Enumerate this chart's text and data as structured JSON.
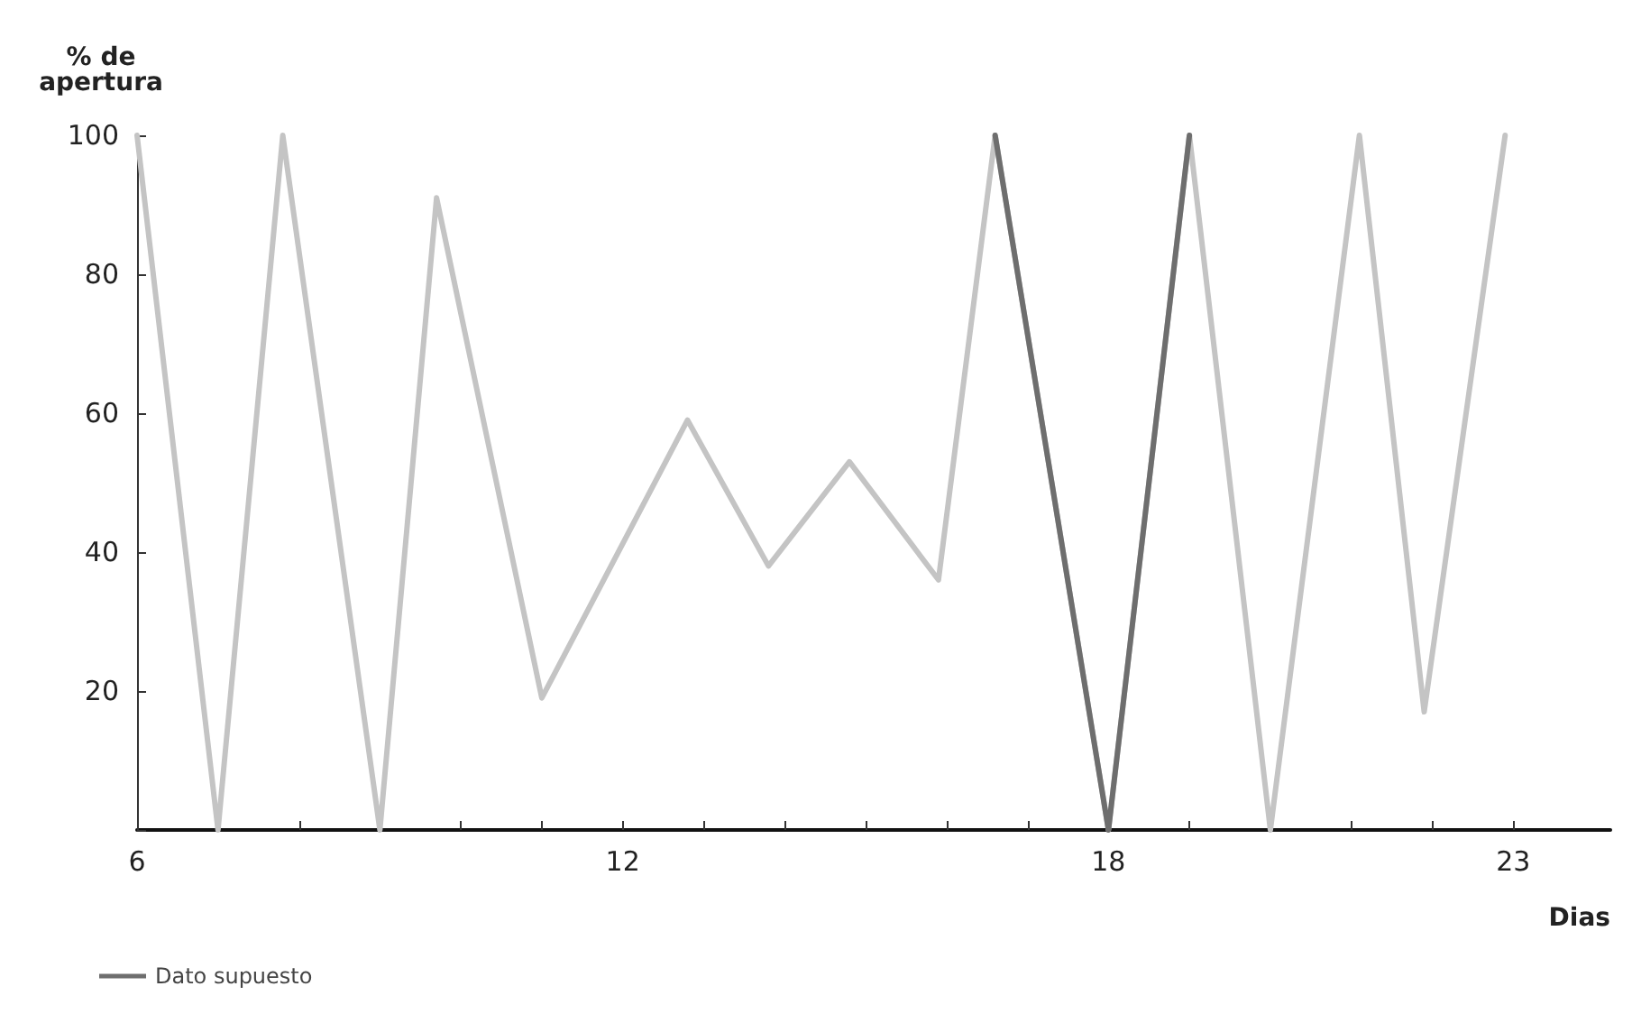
{
  "chart_data": {
    "type": "line",
    "xlabel": "Dias",
    "ylabel": "% de\napertura",
    "x": [
      6,
      7,
      7.8,
      9,
      9.7,
      11,
      12.8,
      13.8,
      14.8,
      15.9,
      16.6,
      18,
      19,
      20,
      21.1,
      21.9,
      22.9
    ],
    "series": [
      {
        "color": "#c4c4c4",
        "values": [
          100,
          0,
          100,
          0,
          91,
          19,
          59,
          38,
          53,
          36,
          100,
          0,
          100,
          0,
          100,
          17,
          100
        ]
      },
      {
        "name": "Dato supuesto",
        "color": "#6e6e6e",
        "x": [
          16.6,
          18,
          19
        ],
        "values": [
          100,
          0,
          100
        ]
      }
    ],
    "xlim": [
      6,
      24.2
    ],
    "ylim": [
      0,
      100
    ],
    "xticks": [
      6,
      {
        "value": 7,
        "label": null
      },
      {
        "value": 8,
        "label": null
      },
      {
        "value": 9,
        "label": null
      },
      {
        "value": 10,
        "label": null
      },
      {
        "value": 11,
        "label": null
      },
      12,
      {
        "value": 13,
        "label": null
      },
      {
        "value": 14,
        "label": null
      },
      {
        "value": 15,
        "label": null
      },
      {
        "value": 16,
        "label": null
      },
      {
        "value": 17,
        "label": null
      },
      18,
      {
        "value": 19,
        "label": null
      },
      {
        "value": 20,
        "label": null
      },
      {
        "value": 21,
        "label": null
      },
      {
        "value": 22,
        "label": null
      },
      23
    ],
    "yticks": [
      {
        "value": 0,
        "label": null
      },
      20,
      40,
      60,
      80,
      100
    ],
    "grid": false,
    "legend": "bottom left",
    "marker": "none",
    "line_style": "solid"
  }
}
